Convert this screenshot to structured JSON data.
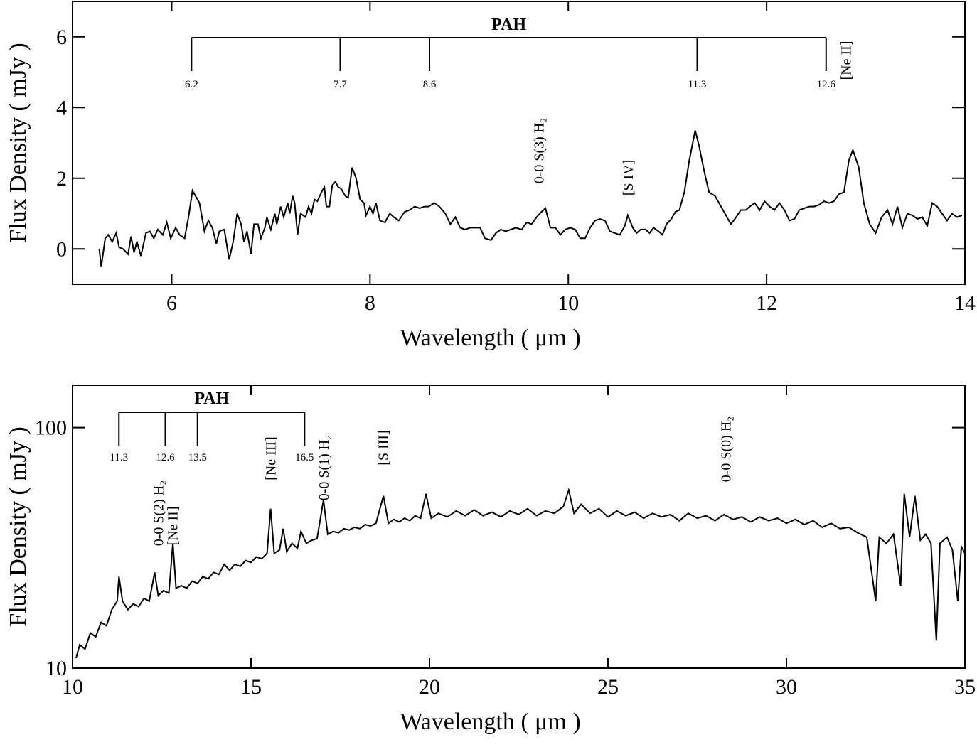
{
  "chart_data": [
    {
      "type": "line",
      "xlabel": "Wavelength ( μm )",
      "ylabel": "Flux Density ( mJy )",
      "color": "#000000",
      "xlim": [
        5,
        14
      ],
      "ylim": [
        -1,
        7
      ],
      "xticks": [
        6,
        8,
        10,
        12,
        14
      ],
      "yticks": [
        0,
        2,
        4,
        6
      ],
      "band_group": {
        "label": "PAH",
        "bands": [
          6.2,
          7.7,
          8.6,
          11.3,
          12.6
        ]
      },
      "line_labels": [
        {
          "text": "0-0 S(3) H₂",
          "x": 9.7
        },
        {
          "text": "[S IV]",
          "x": 10.6
        },
        {
          "text": "[Ne II]",
          "x": 12.8
        }
      ],
      "x": [
        5.27,
        5.29,
        5.33,
        5.36,
        5.4,
        5.44,
        5.47,
        5.51,
        5.56,
        5.59,
        5.62,
        5.65,
        5.69,
        5.74,
        5.78,
        5.82,
        5.86,
        5.91,
        5.95,
        5.99,
        6.04,
        6.08,
        6.13,
        6.17,
        6.21,
        6.24,
        6.28,
        6.33,
        6.37,
        6.41,
        6.45,
        6.48,
        6.53,
        6.58,
        6.62,
        6.66,
        6.7,
        6.73,
        6.76,
        6.8,
        6.83,
        6.87,
        6.9,
        6.94,
        6.96,
        7.0,
        7.04,
        7.06,
        7.1,
        7.13,
        7.17,
        7.19,
        7.22,
        7.24,
        7.27,
        7.3,
        7.35,
        7.38,
        7.41,
        7.44,
        7.47,
        7.51,
        7.54,
        7.56,
        7.59,
        7.62,
        7.65,
        7.68,
        7.71,
        7.75,
        7.78,
        7.82,
        7.86,
        7.9,
        7.94,
        7.96,
        8.0,
        8.03,
        8.06,
        8.1,
        8.15,
        8.2,
        8.24,
        8.29,
        8.35,
        8.4,
        8.45,
        8.5,
        8.55,
        8.59,
        8.65,
        8.7,
        8.76,
        8.81,
        8.86,
        8.91,
        8.96,
        9.01,
        9.06,
        9.11,
        9.16,
        9.22,
        9.27,
        9.32,
        9.37,
        9.42,
        9.47,
        9.53,
        9.58,
        9.63,
        9.68,
        9.73,
        9.77,
        9.82,
        9.87,
        9.92,
        9.97,
        10.02,
        10.07,
        10.12,
        10.17,
        10.22,
        10.27,
        10.32,
        10.37,
        10.42,
        10.47,
        10.52,
        10.57,
        10.6,
        10.65,
        10.69,
        10.73,
        10.78,
        10.82,
        10.86,
        10.91,
        10.95,
        10.99,
        11.04,
        11.08,
        11.12,
        11.17,
        11.22,
        11.28,
        11.32,
        11.37,
        11.42,
        11.48,
        11.54,
        11.58,
        11.64,
        11.68,
        11.74,
        11.79,
        11.83,
        11.88,
        11.93,
        11.98,
        12.03,
        12.08,
        12.13,
        12.18,
        12.23,
        12.28,
        12.33,
        12.38,
        12.43,
        12.48,
        12.53,
        12.58,
        12.63,
        12.68,
        12.73,
        12.78,
        12.83,
        12.87,
        12.93,
        12.98,
        13.04,
        13.1,
        13.16,
        13.22,
        13.27,
        13.32,
        13.37,
        13.42,
        13.47,
        13.52,
        13.57,
        13.62,
        13.67,
        13.72,
        13.77,
        13.82,
        13.87,
        13.92,
        13.97
      ],
      "values": [
        0,
        -0.5,
        0.3,
        0.4,
        0.2,
        0.45,
        0.05,
        0,
        -0.15,
        0.35,
        -0.1,
        0.2,
        -0.2,
        0.45,
        0.5,
        0.3,
        0.55,
        0.4,
        0.75,
        0.3,
        0.6,
        0.4,
        0.3,
        0.9,
        1.65,
        1.5,
        1.3,
        0.5,
        0.8,
        0.6,
        0.15,
        0.5,
        0.55,
        -0.3,
        0.2,
        1.0,
        0.7,
        0.2,
        0.5,
        -0.15,
        0.7,
        0.7,
        0.3,
        0.6,
        0.9,
        0.55,
        1.0,
        0.7,
        1.2,
        0.9,
        1.3,
        1.0,
        1.5,
        1.3,
        0.4,
        1.0,
        0.9,
        1.2,
        1.0,
        1.4,
        1.35,
        1.6,
        1.75,
        1.2,
        1.2,
        1.8,
        1.9,
        1.75,
        1.7,
        1.5,
        1.45,
        2.3,
        2.0,
        1.4,
        1.3,
        0.95,
        1.2,
        1.0,
        1.3,
        0.8,
        0.75,
        1.0,
        0.9,
        0.8,
        1.05,
        1.1,
        1.2,
        1.15,
        1.2,
        1.2,
        1.3,
        1.2,
        1.0,
        0.7,
        0.9,
        0.6,
        0.55,
        0.6,
        0.6,
        0.6,
        0.3,
        0.25,
        0.45,
        0.55,
        0.5,
        0.55,
        0.6,
        0.55,
        0.75,
        0.7,
        0.9,
        1.05,
        1.15,
        0.6,
        0.6,
        0.4,
        0.55,
        0.6,
        0.55,
        0.3,
        0.3,
        0.6,
        0.8,
        0.85,
        0.8,
        0.5,
        0.45,
        0.4,
        0.65,
        0.95,
        0.6,
        0.45,
        0.55,
        0.55,
        0.45,
        0.6,
        0.5,
        0.4,
        0.7,
        0.85,
        1.05,
        1.1,
        1.6,
        2.5,
        3.35,
        2.9,
        2.2,
        1.6,
        1.5,
        1.2,
        1.0,
        0.7,
        0.85,
        1.1,
        1.1,
        1.2,
        1.3,
        1.1,
        1.35,
        1.2,
        1.1,
        1.3,
        1.1,
        0.8,
        0.85,
        1.1,
        1.15,
        1.2,
        1.2,
        1.25,
        1.35,
        1.3,
        1.35,
        1.55,
        1.6,
        2.5,
        2.8,
        2.3,
        1.3,
        0.7,
        0.45,
        0.9,
        1.1,
        0.7,
        1.2,
        0.6,
        1.0,
        0.95,
        0.85,
        0.9,
        0.65,
        1.3,
        1.2,
        1.0,
        0.8,
        1.0,
        0.9,
        0.95
      ]
    },
    {
      "type": "line",
      "xlabel": "Wavelength ( μm )",
      "ylabel": "Flux Density ( mJy )",
      "color": "#000000",
      "log_y": true,
      "xlim": [
        10,
        35
      ],
      "ylim": [
        10,
        150
      ],
      "xticks": [
        10,
        15,
        20,
        25,
        30,
        35
      ],
      "yticks": [
        10,
        100
      ],
      "band_group": {
        "label": "PAH",
        "bands": [
          11.3,
          12.6,
          13.5,
          16.5
        ]
      },
      "line_labels": [
        {
          "text": "0-0 S(2) H₂",
          "x": 12.4
        },
        {
          "text": "[Ne II]",
          "x": 12.8
        },
        {
          "text": "[Ne III]",
          "x": 15.55
        },
        {
          "text": "0-0 S(1) H₂",
          "x": 17.03
        },
        {
          "text": "[S III]",
          "x": 18.7
        },
        {
          "text": "0-0 S(0) H₂",
          "x": 28.3
        }
      ],
      "x": [
        10.1,
        10.2,
        10.35,
        10.5,
        10.65,
        10.8,
        10.95,
        11.1,
        11.25,
        11.3,
        11.4,
        11.55,
        11.7,
        11.85,
        12.0,
        12.15,
        12.3,
        12.4,
        12.55,
        12.7,
        12.81,
        12.9,
        13.05,
        13.2,
        13.35,
        13.5,
        13.65,
        13.8,
        13.95,
        14.1,
        14.25,
        14.4,
        14.55,
        14.7,
        14.85,
        15.0,
        15.15,
        15.3,
        15.45,
        15.55,
        15.65,
        15.8,
        15.9,
        16.0,
        16.15,
        16.3,
        16.4,
        16.55,
        16.7,
        16.85,
        17.03,
        17.15,
        17.3,
        17.45,
        17.6,
        17.75,
        17.9,
        18.05,
        18.2,
        18.35,
        18.5,
        18.71,
        18.85,
        19.0,
        19.15,
        19.3,
        19.45,
        19.6,
        19.75,
        19.9,
        20.05,
        20.25,
        20.5,
        20.75,
        21.0,
        21.25,
        21.5,
        21.75,
        22.0,
        22.25,
        22.5,
        22.75,
        23.0,
        23.25,
        23.5,
        23.75,
        23.9,
        24.05,
        24.25,
        24.5,
        24.75,
        25.0,
        25.25,
        25.5,
        25.75,
        26.0,
        26.25,
        26.5,
        26.75,
        27.0,
        27.25,
        27.5,
        27.75,
        28.0,
        28.25,
        28.5,
        28.75,
        29.0,
        29.25,
        29.5,
        29.75,
        30.0,
        30.25,
        30.5,
        30.75,
        31.0,
        31.25,
        31.5,
        31.75,
        32.0,
        32.25,
        32.5,
        32.6,
        32.8,
        33.0,
        33.2,
        33.3,
        33.45,
        33.6,
        33.75,
        33.9,
        34.05,
        34.2,
        34.3,
        34.5,
        34.65,
        34.8,
        34.9,
        35.0
      ],
      "values": [
        11,
        12.5,
        12,
        14,
        13.5,
        15.5,
        15,
        17.5,
        19,
        24,
        19,
        17.5,
        18.5,
        18,
        19.5,
        19,
        25,
        20,
        21,
        20.5,
        33,
        21.5,
        22,
        21.5,
        23,
        22.5,
        24,
        23.5,
        25,
        24.5,
        27,
        25.5,
        27,
        26.5,
        28,
        27.5,
        29,
        28.5,
        30,
        46,
        30,
        31,
        38,
        30.5,
        33,
        31.5,
        37,
        33,
        34,
        34.5,
        50,
        36,
        37,
        36.5,
        38,
        37.5,
        38.5,
        38,
        39.5,
        39,
        40,
        52,
        40,
        41.5,
        40.5,
        42,
        41,
        43,
        42,
        53,
        42,
        44,
        42.5,
        45,
        43,
        45.5,
        43,
        44.5,
        42.5,
        45,
        43.5,
        46,
        43,
        45,
        44,
        47,
        55,
        44,
        48,
        44,
        46,
        42.5,
        45,
        43,
        44.5,
        42,
        44,
        42.5,
        43.5,
        41,
        44,
        42,
        43,
        41,
        43.5,
        41.5,
        42.5,
        40.5,
        42.5,
        41,
        42,
        40,
        41.5,
        39.5,
        41,
        38.5,
        40,
        38,
        38.5,
        36.5,
        35,
        19,
        35,
        33,
        36,
        22,
        53,
        35,
        52,
        34,
        36,
        33,
        13,
        33,
        35,
        31,
        19,
        32,
        30
      ]
    }
  ]
}
